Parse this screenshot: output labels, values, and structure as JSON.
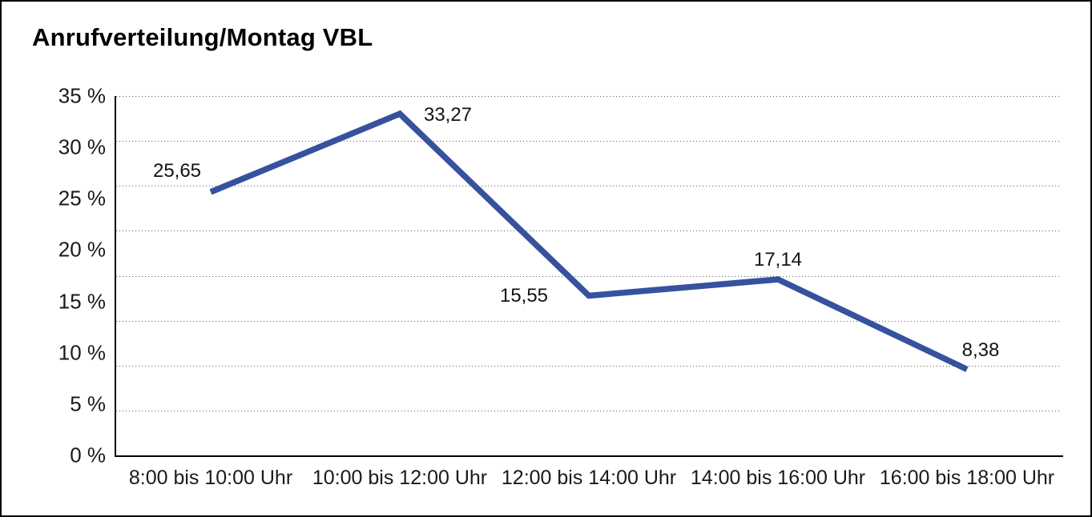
{
  "window": {
    "background": "#ffffff",
    "border_color": "#000000"
  },
  "chart_data": {
    "type": "line",
    "title": "Anrufverteilung/Montag VBL",
    "categories": [
      "8:00 bis 10:00 Uhr",
      "10:00 bis 12:00 Uhr",
      "12:00 bis 14:00 Uhr",
      "14:00 bis 16:00 Uhr",
      "16:00 bis 18:00 Uhr"
    ],
    "values": [
      25.65,
      33.27,
      15.55,
      17.14,
      8.38
    ],
    "point_labels": [
      "25,65",
      "33,27",
      "15,55",
      "17,14",
      "8,38"
    ],
    "xlabel": "",
    "ylabel": "",
    "ylim": [
      0,
      35
    ],
    "y_ticks": [
      {
        "value": 35,
        "label": "35 %"
      },
      {
        "value": 30,
        "label": "30 %"
      },
      {
        "value": 25,
        "label": "25 %"
      },
      {
        "value": 20,
        "label": "20 %"
      },
      {
        "value": 15,
        "label": "15 %"
      },
      {
        "value": 10,
        "label": "10 %"
      },
      {
        "value": 5,
        "label": "5 %"
      },
      {
        "value": 0,
        "label": "0 %"
      }
    ],
    "grid": {
      "orientation": "horizontal",
      "style": "dotted",
      "divisions": 8
    },
    "legend": "none",
    "line_color": "#36529E",
    "gridline_color": "#5a5a5a",
    "axis_color": "#000000",
    "text_color": "#141414"
  }
}
